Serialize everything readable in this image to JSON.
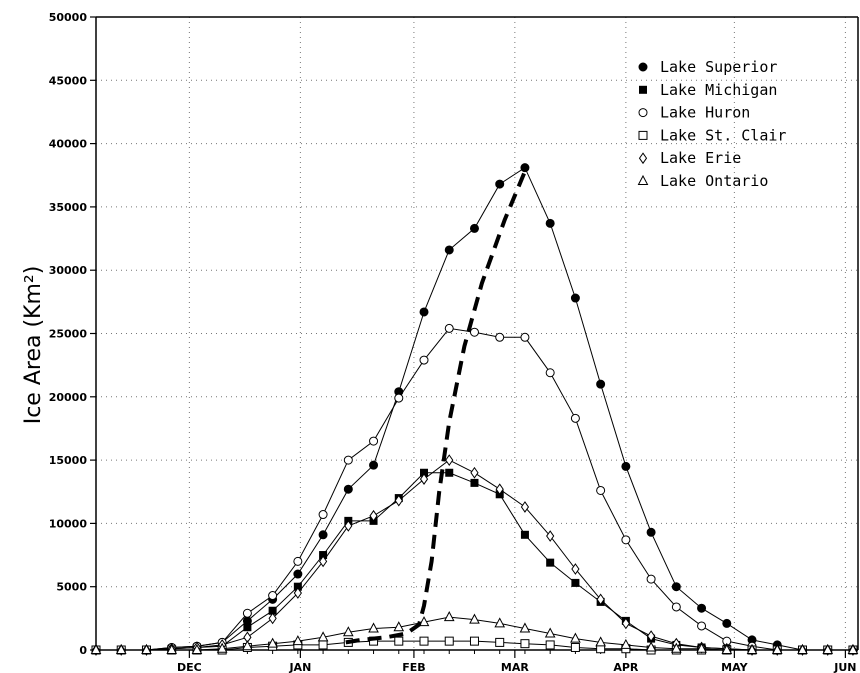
{
  "chart_data": {
    "type": "line",
    "title": "",
    "xlabel": "",
    "ylabel": "Ice Area (Km²)",
    "grid": true,
    "legend_position": "top-right",
    "xlim": [
      0,
      30.2
    ],
    "ylim": [
      0,
      50000
    ],
    "yticks": [
      0,
      5000,
      10000,
      15000,
      20000,
      25000,
      30000,
      35000,
      40000,
      45000,
      50000
    ],
    "month_ticks": [
      {
        "label": "DEC",
        "x": 3.7
      },
      {
        "label": "JAN",
        "x": 8.1
      },
      {
        "label": "FEB",
        "x": 12.6
      },
      {
        "label": "MAR",
        "x": 16.6
      },
      {
        "label": "APR",
        "x": 21.0
      },
      {
        "label": "MAY",
        "x": 25.3
      },
      {
        "label": "JUN",
        "x": 29.7
      }
    ],
    "x": [
      0,
      1,
      2,
      3,
      4,
      5,
      6,
      7,
      8,
      9,
      10,
      11,
      12,
      13,
      14,
      15,
      16,
      17,
      18,
      19,
      20,
      21,
      22,
      23,
      24,
      25,
      26,
      27,
      28,
      29,
      30
    ],
    "series": [
      {
        "name": "Lake Superior",
        "marker": "filled-circle",
        "values": [
          0,
          0,
          0,
          200,
          300,
          600,
          2300,
          4000,
          6000,
          9100,
          12700,
          14600,
          20400,
          26700,
          31600,
          33300,
          36800,
          38100,
          33700,
          27800,
          21000,
          14500,
          9300,
          5000,
          3300,
          2100,
          800,
          400,
          0,
          0,
          0
        ]
      },
      {
        "name": "Lake Michigan",
        "marker": "filled-square",
        "values": [
          0,
          0,
          0,
          100,
          200,
          300,
          1800,
          3100,
          5000,
          7500,
          10200,
          10200,
          12000,
          14000,
          14000,
          13200,
          12300,
          9100,
          6900,
          5300,
          3800,
          2300,
          900,
          400,
          200,
          100,
          0,
          0,
          0,
          0,
          0
        ]
      },
      {
        "name": "Lake Huron",
        "marker": "open-circle",
        "values": [
          0,
          0,
          0,
          200,
          300,
          600,
          2900,
          4300,
          7000,
          10700,
          15000,
          16500,
          19900,
          22900,
          25400,
          25100,
          24700,
          24700,
          21900,
          18300,
          12600,
          8700,
          5600,
          3400,
          1900,
          700,
          300,
          0,
          0,
          0,
          0
        ]
      },
      {
        "name": "Lake St. Clair",
        "marker": "open-square",
        "values": [
          0,
          0,
          0,
          0,
          0,
          0,
          200,
          300,
          400,
          400,
          600,
          700,
          700,
          700,
          700,
          700,
          600,
          500,
          400,
          200,
          100,
          100,
          0,
          0,
          0,
          0,
          0,
          0,
          0,
          0,
          0
        ]
      },
      {
        "name": "Lake Erie",
        "marker": "open-diamond",
        "values": [
          0,
          0,
          0,
          100,
          200,
          400,
          1000,
          2500,
          4500,
          7000,
          9800,
          10600,
          11800,
          13500,
          15000,
          14000,
          12700,
          11300,
          9000,
          6400,
          4000,
          2100,
          1100,
          500,
          200,
          100,
          0,
          0,
          0,
          0,
          0
        ]
      },
      {
        "name": "Lake Ontario",
        "marker": "open-triangle",
        "values": [
          0,
          0,
          0,
          0,
          0,
          100,
          300,
          500,
          700,
          1000,
          1400,
          1700,
          1800,
          2200,
          2600,
          2400,
          2100,
          1700,
          1300,
          900,
          600,
          400,
          200,
          100,
          100,
          0,
          0,
          0,
          0,
          0,
          0
        ]
      }
    ],
    "dashed_curve": {
      "x": [
        9.9,
        10.5,
        11.5,
        12.3,
        12.8,
        13.0,
        13.3,
        13.6,
        14.0,
        14.6,
        15.3,
        16.2,
        17.0
      ],
      "values": [
        600,
        800,
        1000,
        1300,
        2000,
        3500,
        7000,
        12500,
        18000,
        24000,
        29000,
        34000,
        37800
      ]
    }
  }
}
